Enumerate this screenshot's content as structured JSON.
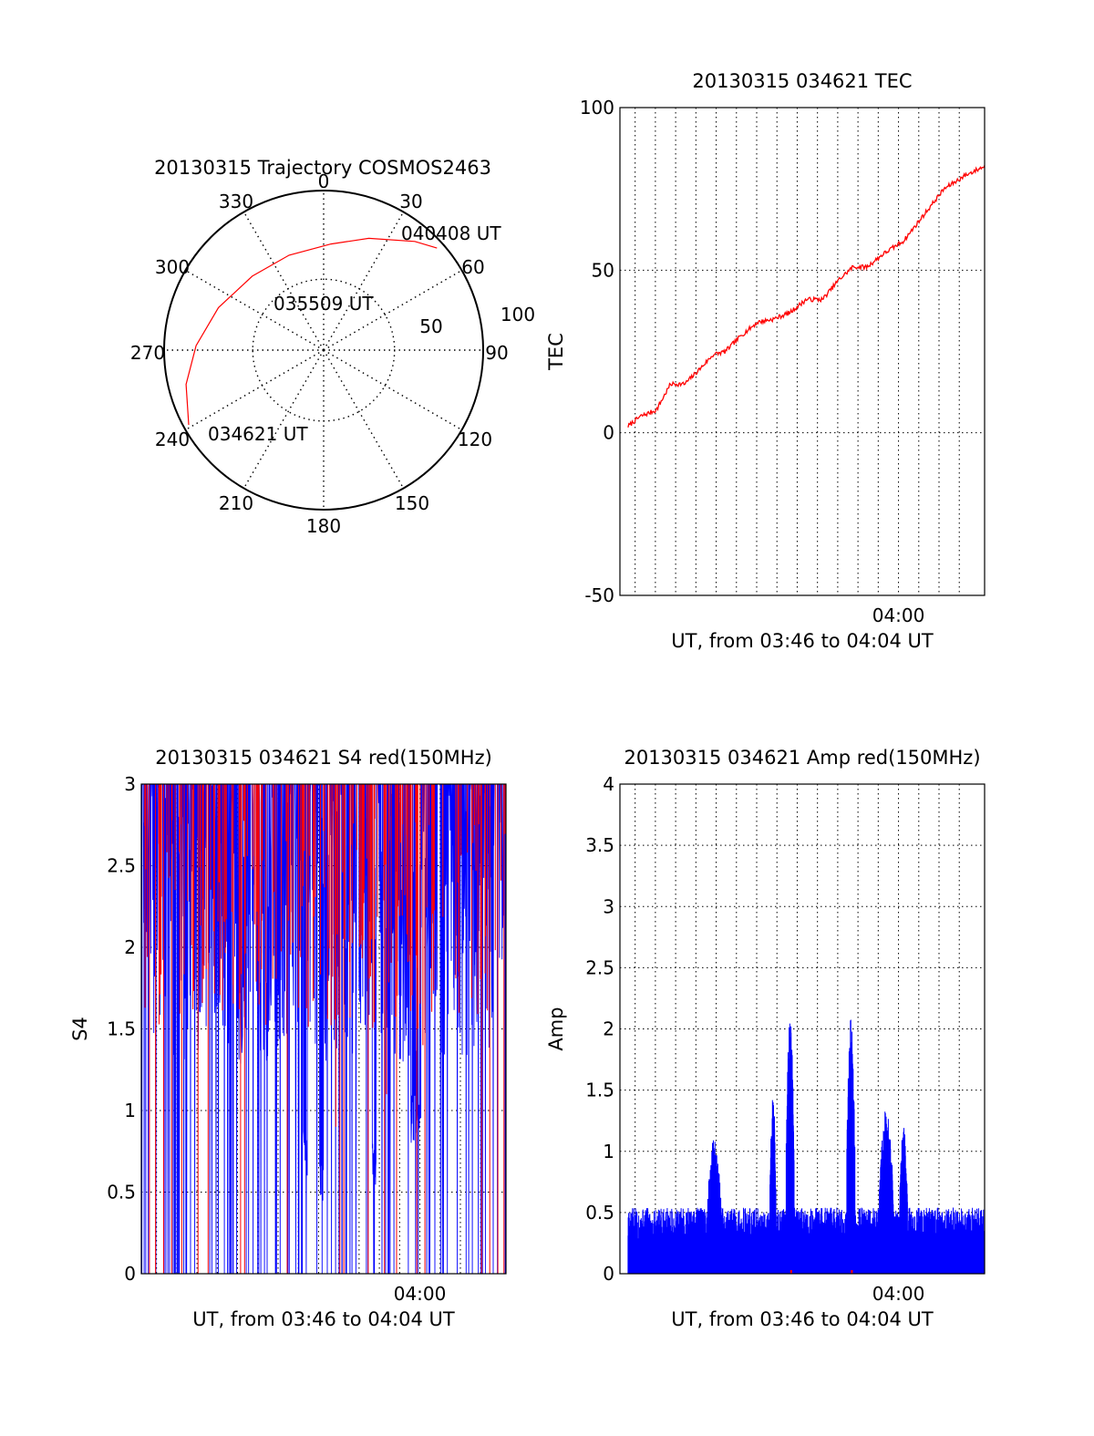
{
  "colors": {
    "primary_trace": "#ff0000",
    "secondary_trace": "#0000ff",
    "axis": "#000000",
    "grid": "#000000",
    "background": "#ffffff"
  },
  "chart_data": [
    {
      "id": "trajectory",
      "type": "polar",
      "title": "20130315 Trajectory COSMOS2463",
      "azimuth_labels": [
        "0",
        "30",
        "60",
        "90",
        "120",
        "150",
        "180",
        "210",
        "240",
        "270",
        "300",
        "330"
      ],
      "azimuth_degrees": [
        0,
        30,
        60,
        90,
        120,
        150,
        180,
        210,
        240,
        270,
        300,
        330
      ],
      "radial_ring_labels": [
        "50",
        "100"
      ],
      "elevation_rings": [
        50,
        100
      ],
      "track_series_name": "red",
      "track": [
        {
          "az": 241,
          "el": 3
        },
        {
          "az": 256,
          "el": 10
        },
        {
          "az": 272,
          "el": 18
        },
        {
          "az": 292,
          "el": 26
        },
        {
          "az": 316,
          "el": 32
        },
        {
          "az": 340,
          "el": 33
        },
        {
          "az": 4,
          "el": 30
        },
        {
          "az": 22,
          "el": 22
        },
        {
          "az": 40,
          "el": 10
        },
        {
          "az": 48,
          "el": 4
        }
      ],
      "annotations": [
        {
          "text": "040408 UT",
          "at": "track end"
        },
        {
          "text": "035509 UT",
          "at": "track mid"
        },
        {
          "text": "034621 UT",
          "at": "track start"
        }
      ]
    },
    {
      "id": "tec",
      "type": "line",
      "title": "20130315 034621 TEC",
      "ylabel": "TEC",
      "xlabel": "UT, from 03:46 to 04:04 UT",
      "xlim": [
        0,
        18
      ],
      "ylim": [
        -50,
        100
      ],
      "yticks": [
        -50,
        0,
        50,
        100
      ],
      "ytick_labels": [
        "-50",
        "0",
        "50",
        "100"
      ],
      "xtick_label": "04:00",
      "xtick_value": 14,
      "grid": true,
      "x_minutes": [
        0.0,
        1.0,
        1.8,
        2.5,
        3.2,
        4.0,
        4.6,
        5.2,
        6.0,
        6.8,
        7.6,
        8.4,
        9.2,
        10.0,
        10.8,
        11.5,
        12.2,
        13.0,
        14.0,
        15.0,
        16.0,
        17.0,
        18.0
      ],
      "series": [
        {
          "name": "red",
          "values": [
            0,
            5,
            7,
            15,
            15,
            20,
            24,
            25,
            30,
            34,
            35,
            37,
            41,
            41,
            47,
            51,
            51,
            55,
            59,
            67,
            75,
            79,
            82
          ]
        }
      ]
    },
    {
      "id": "s4",
      "type": "line",
      "title": "20130315 034621 S4 red(150MHz)",
      "ylabel": "S4",
      "xlabel": "UT, from 03:46 to 04:04 UT",
      "xlim": [
        0,
        18
      ],
      "ylim": [
        0,
        3
      ],
      "yticks": [
        0,
        0.5,
        1,
        1.5,
        2,
        2.5,
        3
      ],
      "ytick_labels": [
        "0",
        "0.5",
        "1",
        "1.5",
        "2",
        "2.5",
        "3"
      ],
      "xtick_label": "04:00",
      "xtick_value": 14,
      "grid": true,
      "series": [
        {
          "name": "red",
          "description": "dense noisy trace, mostly saturated near 3 with frequent drops to 0",
          "baseline_range": [
            1.5,
            3
          ]
        },
        {
          "name": "blue",
          "description": "dense noisy trace, mostly between 1.3 and 3 with dips to 0.5-1.0 and 0",
          "baseline_range": [
            1.3,
            3
          ]
        }
      ]
    },
    {
      "id": "amp",
      "type": "line",
      "title": "20130315 034621 Amp red(150MHz)",
      "ylabel": "Amp",
      "xlabel": "UT, from 03:46 to 04:04 UT",
      "xlim": [
        0,
        18
      ],
      "ylim": [
        0,
        4
      ],
      "yticks": [
        0,
        0.5,
        1,
        1.5,
        2,
        2.5,
        3,
        3.5,
        4
      ],
      "ytick_labels": [
        "0",
        "0.5",
        "1",
        "1.5",
        "2",
        "2.5",
        "3",
        "3.5",
        "4"
      ],
      "xtick_label": "04:00",
      "xtick_value": 14,
      "grid": true,
      "series": [
        {
          "name": "blue",
          "baseline_level": 0.4,
          "bursts": [
            {
              "start": 4.3,
              "end": 5.0,
              "peak": 1.1
            },
            {
              "start": 7.4,
              "end": 7.7,
              "peak": 1.5
            },
            {
              "start": 8.2,
              "end": 8.6,
              "peak": 2.1
            },
            {
              "start": 11.2,
              "end": 11.6,
              "peak": 2.1
            },
            {
              "start": 12.8,
              "end": 13.5,
              "peak": 1.35
            },
            {
              "start": 13.8,
              "end": 14.2,
              "peak": 1.2
            }
          ]
        },
        {
          "name": "red",
          "baseline_level": 0.0
        }
      ]
    }
  ]
}
